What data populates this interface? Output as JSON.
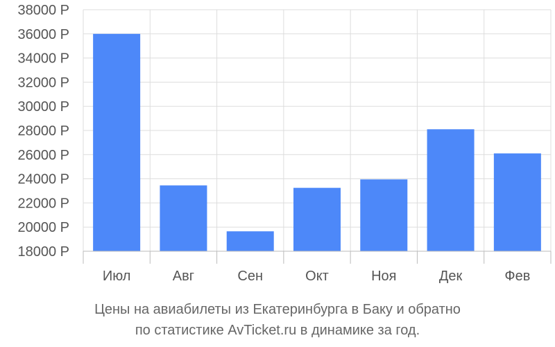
{
  "chart_data": {
    "type": "bar",
    "categories": [
      "Июл",
      "Авг",
      "Сен",
      "Окт",
      "Ноя",
      "Дек",
      "Фев"
    ],
    "values": [
      36000,
      23450,
      19650,
      23250,
      23950,
      28100,
      26100
    ],
    "ylim": [
      18000,
      38000
    ],
    "yticks": [
      "18000 Р",
      "20000 Р",
      "22000 Р",
      "24000 Р",
      "26000 Р",
      "28000 Р",
      "30000 Р",
      "32000 Р",
      "34000 Р",
      "36000 Р",
      "38000 Р"
    ],
    "ytick_values": [
      18000,
      20000,
      22000,
      24000,
      26000,
      28000,
      30000,
      32000,
      34000,
      36000,
      38000
    ],
    "grid": true,
    "bar_color": "#4d88f9"
  },
  "caption": {
    "line1": "Цены на авиабилеты из Екатеринбурга в Баку и обратно",
    "line2": "по статистике AvTicket.ru в динамике за год."
  }
}
